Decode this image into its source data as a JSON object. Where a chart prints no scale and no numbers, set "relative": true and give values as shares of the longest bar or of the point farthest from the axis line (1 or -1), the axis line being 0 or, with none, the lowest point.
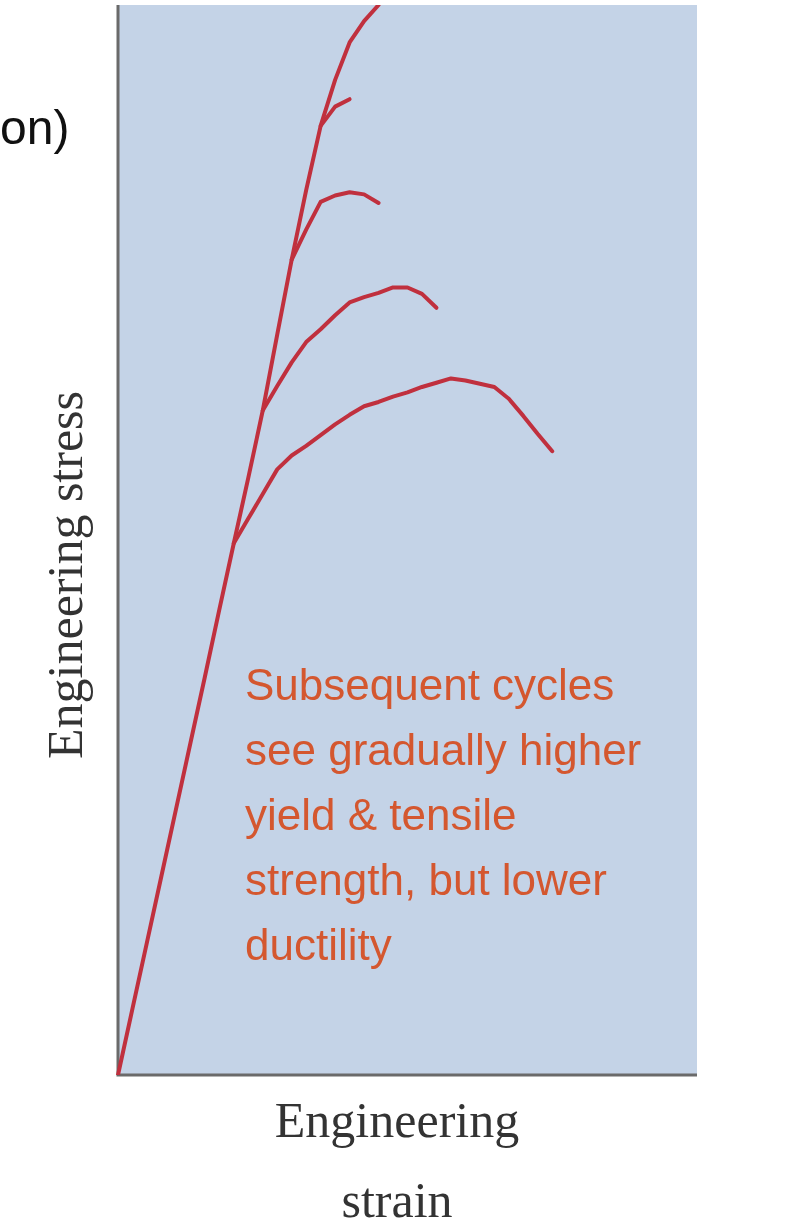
{
  "chart_data": {
    "type": "line",
    "relative": true,
    "xlabel": "Engineering\nstrain",
    "ylabel": "Engineering stress",
    "annotations": [
      "on)",
      "Subsequent cycles see gradually higher yield & tensile strength, but lower ductility"
    ],
    "categories": [
      null,
      null,
      null,
      null,
      null,
      null,
      null,
      null,
      null,
      null,
      null,
      null,
      null,
      null,
      null,
      null,
      null,
      null,
      null,
      null,
      null,
      null,
      null,
      null,
      null,
      null,
      null,
      null,
      null,
      null,
      null,
      null,
      null,
      null,
      null,
      null,
      null,
      null,
      null,
      null,
      null
    ],
    "series": [
      {
        "color": "#c0303e",
        "values": [
          0,
          0.062,
          0.124,
          0.186,
          0.248,
          0.31,
          0.372,
          0.435,
          0.497,
          0.558,
          0.621,
          0.692,
          0.762,
          0.827,
          0.887,
          0.93,
          0.965,
          0.985,
          1,
          null,
          null,
          null,
          null,
          null,
          null,
          null,
          null,
          null,
          null,
          null,
          null,
          null,
          null,
          null,
          null,
          null,
          null,
          null,
          null,
          null,
          null
        ]
      },
      {
        "color": "#c0303e",
        "values": [
          null,
          null,
          null,
          null,
          null,
          null,
          null,
          null,
          0.497,
          0.52,
          0.543,
          0.566,
          0.579,
          0.588,
          0.598,
          0.608,
          0.617,
          0.625,
          0.629,
          0.634,
          0.638,
          0.643,
          0.647,
          0.651,
          0.649,
          0.646,
          0.643,
          0.632,
          0.616,
          0.599,
          0.583,
          null,
          null,
          null,
          null,
          null,
          null,
          null,
          null,
          null,
          null
        ]
      },
      {
        "color": "#c0303e",
        "values": [
          null,
          null,
          null,
          null,
          null,
          null,
          null,
          null,
          null,
          null,
          0.621,
          0.644,
          0.666,
          0.685,
          0.697,
          0.71,
          0.722,
          0.727,
          0.731,
          0.736,
          0.736,
          0.73,
          0.717,
          null,
          null,
          null,
          null,
          null,
          null,
          null,
          null,
          null,
          null,
          null,
          null,
          null,
          null,
          null,
          null,
          null,
          null
        ]
      },
      {
        "color": "#c0303e",
        "values": [
          null,
          null,
          null,
          null,
          null,
          null,
          null,
          null,
          null,
          null,
          null,
          null,
          0.762,
          0.79,
          0.816,
          0.822,
          0.825,
          0.823,
          0.815,
          null,
          null,
          null,
          null,
          null,
          null,
          null,
          null,
          null,
          null,
          null,
          null,
          null,
          null,
          null,
          null,
          null,
          null,
          null,
          null,
          null,
          null
        ]
      },
      {
        "color": "#c0303e",
        "values": [
          null,
          null,
          null,
          null,
          null,
          null,
          null,
          null,
          null,
          null,
          null,
          null,
          null,
          null,
          0.887,
          0.905,
          0.912,
          null,
          null,
          null,
          null,
          null,
          null,
          null,
          null,
          null,
          null,
          null,
          null,
          null,
          null,
          null,
          null,
          null,
          null,
          null,
          null,
          null,
          null,
          null,
          null
        ]
      }
    ]
  }
}
